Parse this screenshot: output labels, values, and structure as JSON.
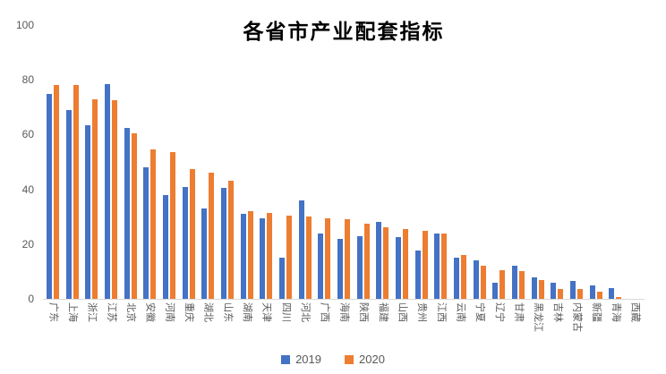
{
  "chart_data": {
    "type": "bar",
    "title": "各省市产业配套指标",
    "categories": [
      "广东",
      "上海",
      "浙江",
      "江苏",
      "北京",
      "安徽",
      "河南",
      "重庆",
      "湖北",
      "山东",
      "湖南",
      "天津",
      "四川",
      "河北",
      "广西",
      "海南",
      "陕西",
      "福建",
      "山西",
      "贵州",
      "江西",
      "云南",
      "宁夏",
      "辽宁",
      "甘肃",
      "黑龙江",
      "吉林",
      "内蒙古",
      "新疆",
      "青海",
      "西藏"
    ],
    "series": [
      {
        "name": "2019",
        "color": "#4472C4",
        "values": [
          75,
          69,
          63.5,
          78.5,
          62.5,
          48,
          38,
          41,
          33,
          40.5,
          31,
          29.5,
          15,
          36,
          24,
          22,
          23,
          28,
          22.5,
          17.5,
          24,
          15,
          14,
          6,
          12,
          8,
          6,
          6.5,
          5,
          4,
          0
        ]
      },
      {
        "name": "2020",
        "color": "#ED7D31",
        "values": [
          78,
          78,
          73,
          72.5,
          60.5,
          54.5,
          53.5,
          47.5,
          46,
          43,
          32,
          31.5,
          30.5,
          30,
          29.5,
          29,
          27.5,
          26,
          25.5,
          25,
          24,
          16,
          12,
          10.5,
          10,
          7,
          3.5,
          3.5,
          2.5,
          0.5,
          0
        ]
      }
    ],
    "xlabel": "",
    "ylabel": "",
    "ylim": [
      0,
      100
    ],
    "yticks": [
      0,
      20,
      40,
      60,
      80,
      100
    ],
    "grid": false,
    "legend_position": "bottom",
    "x_tick_rotation": "vertical"
  },
  "colors": {
    "axis_label": "#595959",
    "axis_line": "#D9D9D9",
    "title": "#000000",
    "background": "#FFFFFF"
  }
}
